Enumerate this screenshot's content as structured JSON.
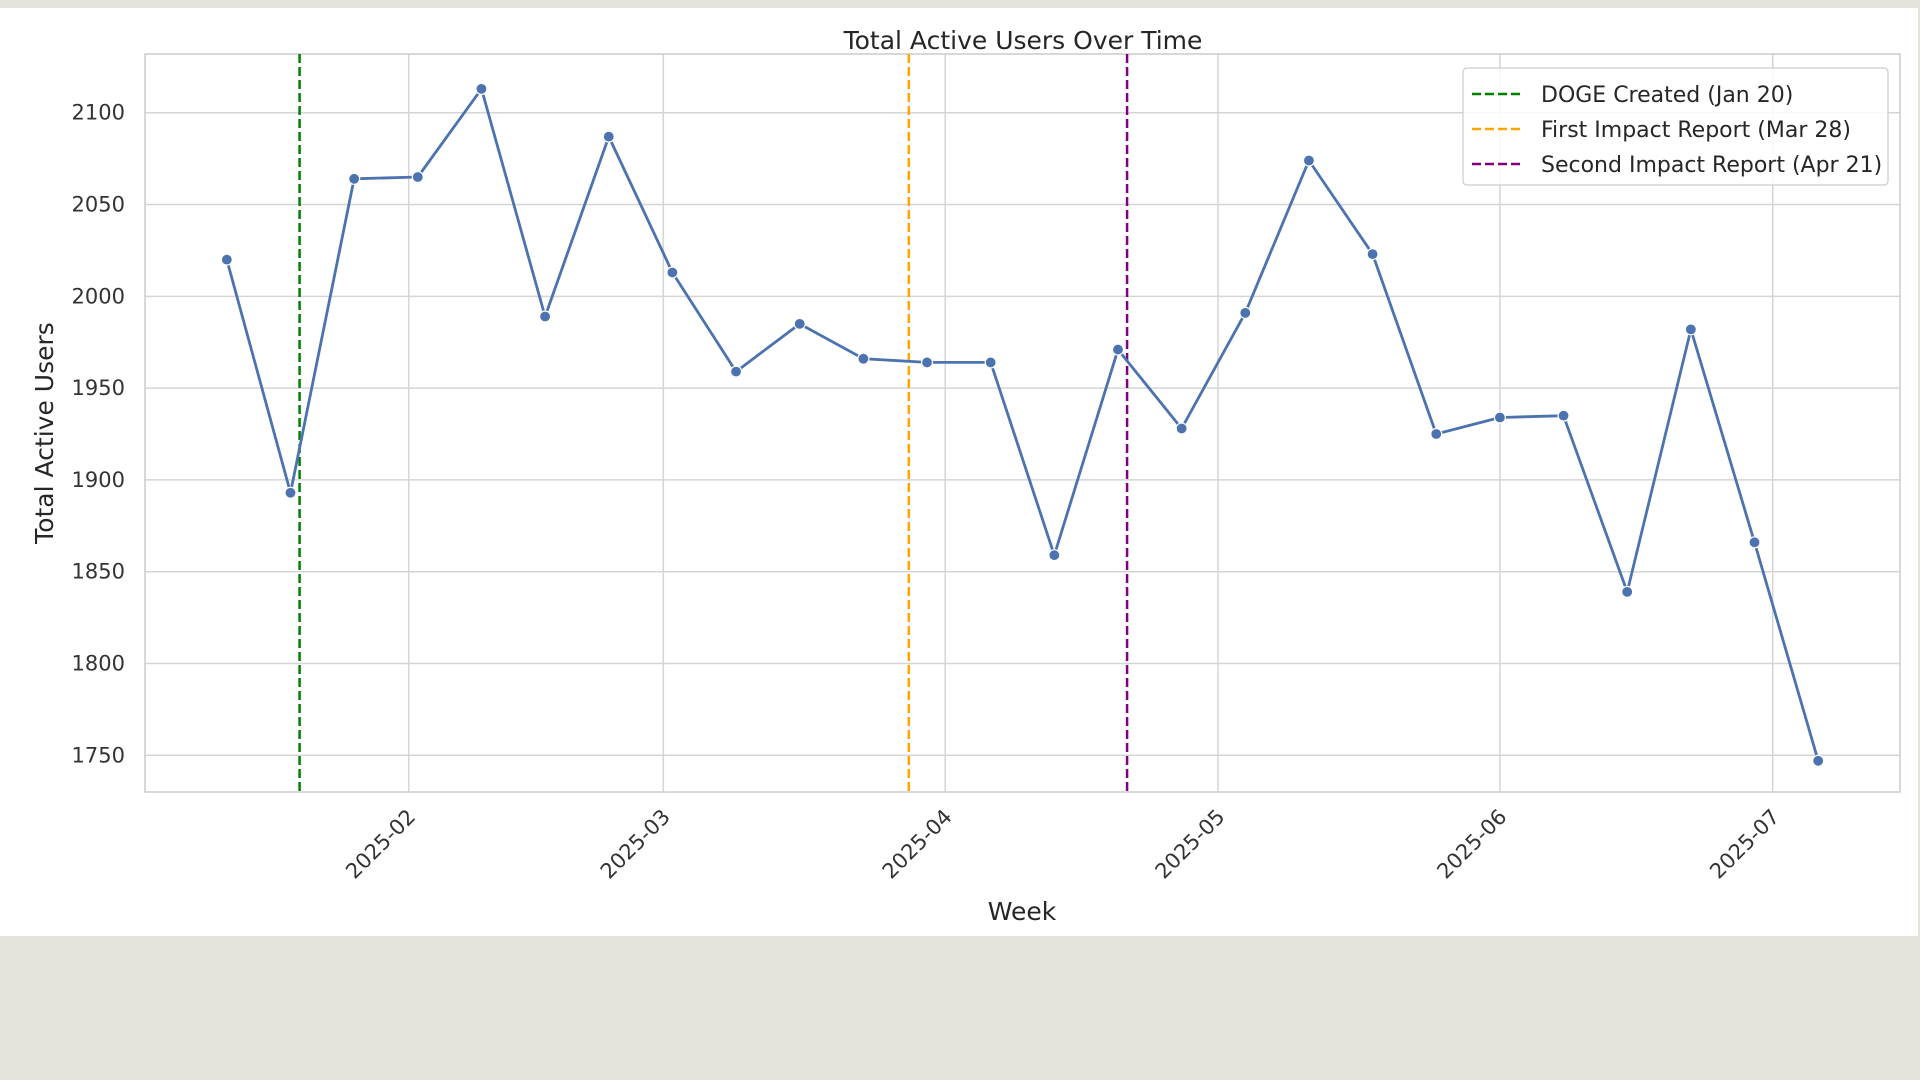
{
  "chart_data": {
    "type": "line",
    "title": "Total Active Users Over Time",
    "xlabel": "Week",
    "ylabel": "Total Active Users",
    "x": [
      "2025-01-12",
      "2025-01-19",
      "2025-01-26",
      "2025-02-02",
      "2025-02-09",
      "2025-02-16",
      "2025-02-23",
      "2025-03-02",
      "2025-03-09",
      "2025-03-16",
      "2025-03-23",
      "2025-03-30",
      "2025-04-06",
      "2025-04-13",
      "2025-04-20",
      "2025-04-27",
      "2025-05-04",
      "2025-05-11",
      "2025-05-18",
      "2025-05-25",
      "2025-06-01",
      "2025-06-08",
      "2025-06-15",
      "2025-06-22",
      "2025-06-29",
      "2025-07-06"
    ],
    "series": [
      {
        "values": [
          2020,
          1893,
          2064,
          2065,
          2113,
          1989,
          2087,
          2013,
          1959,
          1985,
          1966,
          1964,
          1964,
          1859,
          1971,
          1928,
          1991,
          2074,
          2023,
          1925,
          1934,
          1935,
          1839,
          1982,
          1866,
          1747
        ],
        "color": "#4c72b0"
      }
    ],
    "xlim": [
      "2025-01-03",
      "2025-07-15"
    ],
    "ylim": [
      1730,
      2132
    ],
    "y_ticks": [
      1750,
      1800,
      1850,
      1900,
      1950,
      2000,
      2050,
      2100
    ],
    "x_ticks": [
      "2025-02-01",
      "2025-03-01",
      "2025-04-01",
      "2025-05-01",
      "2025-06-01",
      "2025-07-01"
    ],
    "x_tick_labels": [
      "2025-02",
      "2025-03",
      "2025-04",
      "2025-05",
      "2025-06",
      "2025-07"
    ],
    "vlines": [
      {
        "x": "2025-01-20",
        "label": "DOGE Created (Jan 20)",
        "color": "#008000"
      },
      {
        "x": "2025-03-28",
        "label": "First Impact Report (Mar 28)",
        "color": "#ffa500"
      },
      {
        "x": "2025-04-21",
        "label": "Second Impact Report (Apr 21)",
        "color": "#800080"
      }
    ],
    "grid": true,
    "legend_position": "top-right"
  }
}
